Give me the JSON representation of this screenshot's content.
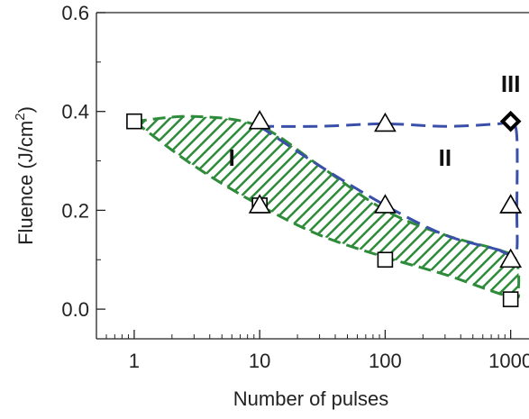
{
  "chart_data": {
    "type": "scatter",
    "title": "",
    "xlabel": "Number of pulses",
    "ylabel": "Fluence (J/cm²)",
    "ylabel_parts": {
      "main": "Fluence (J/cm",
      "sup": "2",
      "close": ")"
    },
    "xscale": "log",
    "xlim": [
      0.5,
      1400
    ],
    "ylim": [
      -0.06,
      0.6
    ],
    "x_ticks": [
      1,
      10,
      100,
      1000
    ],
    "x_tick_labels": [
      "1",
      "10",
      "100",
      "1000"
    ],
    "y_ticks": [
      0.0,
      0.2,
      0.4,
      0.6
    ],
    "y_tick_labels": [
      "0.0",
      "0.2",
      "0.4",
      "0.6"
    ],
    "grid": false,
    "series": [
      {
        "marker": "square",
        "x": [
          1,
          10,
          100,
          1000
        ],
        "y": [
          0.38,
          0.21,
          0.1,
          0.02
        ]
      },
      {
        "marker": "triangle",
        "x": [
          10,
          100,
          1000,
          10,
          100,
          1000,
          1000
        ],
        "y": [
          0.38,
          0.375,
          0.21,
          0.21,
          0.21,
          0.1,
          0.21
        ]
      },
      {
        "marker": "diamond",
        "x": [
          1000
        ],
        "y": [
          0.38
        ]
      }
    ],
    "regions": [
      {
        "label": "I",
        "x": 6,
        "y": 0.29,
        "fill": "hatched-green",
        "color": "#2e8b3a"
      },
      {
        "label": "II",
        "x": 300,
        "y": 0.29,
        "color": "#3a4fa8"
      },
      {
        "label": "III",
        "x": 1000,
        "y": 0.44
      }
    ],
    "boundaries": {
      "region_I": [
        [
          1,
          0.38
        ],
        [
          3,
          0.39
        ],
        [
          10,
          0.37
        ],
        [
          30,
          0.29
        ],
        [
          100,
          0.2
        ],
        [
          300,
          0.15
        ],
        [
          800,
          0.12
        ],
        [
          1100,
          0.1
        ],
        [
          1150,
          0.04
        ],
        [
          1000,
          0.025
        ],
        [
          300,
          0.07
        ],
        [
          100,
          0.105
        ],
        [
          30,
          0.15
        ],
        [
          10,
          0.21
        ],
        [
          3,
          0.29
        ],
        [
          1,
          0.38
        ]
      ],
      "region_II_top": [
        [
          10,
          0.37
        ],
        [
          30,
          0.37
        ],
        [
          100,
          0.375
        ],
        [
          300,
          0.37
        ],
        [
          800,
          0.375
        ],
        [
          1000,
          0.38
        ],
        [
          1120,
          0.35
        ],
        [
          1120,
          0.2
        ],
        [
          1120,
          0.12
        ],
        [
          1000,
          0.11
        ],
        [
          800,
          0.12
        ]
      ]
    },
    "colors": {
      "green": "#2e8b3a",
      "blue": "#3a4fa8",
      "marker": "#000000"
    }
  }
}
